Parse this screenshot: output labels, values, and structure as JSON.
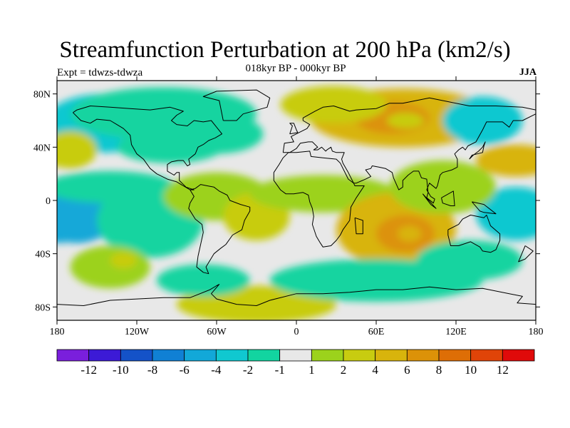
{
  "title": "Streamfunction Perturbation at 200 hPa (km2/s)",
  "subtitle": "018kyr BP - 000kyr BP",
  "left_label": "Expt = tdwzs-tdwza",
  "right_label": "JJA",
  "lat_ticks": [
    {
      "label": "80N",
      "lat": 80
    },
    {
      "label": "40N",
      "lat": 40
    },
    {
      "label": "0",
      "lat": 0
    },
    {
      "label": "40S",
      "lat": -40
    },
    {
      "label": "80S",
      "lat": -80
    }
  ],
  "lon_ticks": [
    {
      "label": "180",
      "lon": -180
    },
    {
      "label": "120W",
      "lon": -120
    },
    {
      "label": "60W",
      "lon": -60
    },
    {
      "label": "0",
      "lon": 0
    },
    {
      "label": "60E",
      "lon": 60
    },
    {
      "label": "120E",
      "lon": 120
    },
    {
      "label": "180",
      "lon": 180
    }
  ],
  "colorbar": {
    "colors": [
      "#7a1fdc",
      "#3c1ad6",
      "#1452c8",
      "#1080d4",
      "#12a8d8",
      "#10c8d0",
      "#12d4a0",
      "#e8e8e8",
      "#9cd21c",
      "#c8cc10",
      "#d8b40c",
      "#dc9208",
      "#de6e06",
      "#e04408",
      "#e00a0a"
    ],
    "labels": [
      "-12",
      "-10",
      "-8",
      "-6",
      "-4",
      "-2",
      "-1",
      "1",
      "2",
      "4",
      "6",
      "8",
      "10",
      "12"
    ]
  },
  "background_color": "#e8e8e8",
  "field_blobs": [
    {
      "lon": 80,
      "lat": 62,
      "rlon": 70,
      "rlat": 22,
      "level": 3.5
    },
    {
      "lon": 72,
      "lat": 62,
      "rlon": 28,
      "rlat": 12,
      "level": 5
    },
    {
      "lon": 82,
      "lat": 60,
      "rlon": 14,
      "rlat": 6,
      "level": 3
    },
    {
      "lon": 28,
      "lat": 72,
      "rlon": 40,
      "rlat": 14,
      "level": 2
    },
    {
      "lon": -145,
      "lat": 58,
      "rlon": 45,
      "rlat": 22,
      "level": -3
    },
    {
      "lon": -100,
      "lat": 65,
      "rlon": 70,
      "rlat": 20,
      "level": -2
    },
    {
      "lon": -60,
      "lat": 50,
      "rlon": 35,
      "rlat": 15,
      "level": -2
    },
    {
      "lon": -95,
      "lat": 40,
      "rlon": 40,
      "rlat": 12,
      "level": -2
    },
    {
      "lon": -170,
      "lat": 38,
      "rlon": 20,
      "rlat": 14,
      "level": 3
    },
    {
      "lon": -178,
      "lat": 33,
      "rlon": 10,
      "rlat": 8,
      "level": 3
    },
    {
      "lon": 140,
      "lat": 60,
      "rlon": 30,
      "rlat": 18,
      "level": -3
    },
    {
      "lon": 165,
      "lat": 30,
      "rlon": 30,
      "rlat": 12,
      "level": 4
    },
    {
      "lon": 172,
      "lat": 30,
      "rlon": 12,
      "rlat": 6,
      "level": 4
    },
    {
      "lon": -165,
      "lat": -10,
      "rlon": 30,
      "rlat": 22,
      "level": -4
    },
    {
      "lon": -178,
      "lat": -20,
      "rlon": 20,
      "rlat": 12,
      "level": -4
    },
    {
      "lon": -110,
      "lat": -15,
      "rlon": 40,
      "rlat": 28,
      "level": -2
    },
    {
      "lon": -140,
      "lat": 10,
      "rlon": 50,
      "rlat": 12,
      "level": -1.5
    },
    {
      "lon": 165,
      "lat": -10,
      "rlon": 30,
      "rlat": 20,
      "level": -3
    },
    {
      "lon": 175,
      "lat": -15,
      "rlon": 15,
      "rlat": 10,
      "level": -3
    },
    {
      "lon": -60,
      "lat": 3,
      "rlon": 40,
      "rlat": 18,
      "level": 1.5
    },
    {
      "lon": -30,
      "lat": -12,
      "rlon": 25,
      "rlat": 18,
      "level": 3
    },
    {
      "lon": -25,
      "lat": -15,
      "rlon": 10,
      "rlat": 7,
      "level": 3
    },
    {
      "lon": 20,
      "lat": 5,
      "rlon": 55,
      "rlat": 14,
      "level": 1.5
    },
    {
      "lon": 75,
      "lat": -22,
      "rlon": 45,
      "rlat": 28,
      "level": 4
    },
    {
      "lon": 82,
      "lat": -25,
      "rlon": 22,
      "rlat": 14,
      "level": 5
    },
    {
      "lon": 85,
      "lat": -25,
      "rlon": 9,
      "rlat": 6,
      "level": 4
    },
    {
      "lon": -140,
      "lat": -50,
      "rlon": 30,
      "rlat": 16,
      "level": 1.5
    },
    {
      "lon": -130,
      "lat": -45,
      "rlon": 10,
      "rlat": 6,
      "level": 2
    },
    {
      "lon": -30,
      "lat": -78,
      "rlon": 60,
      "rlat": 14,
      "level": 2
    },
    {
      "lon": -20,
      "lat": -75,
      "rlon": 30,
      "rlat": 8,
      "level": 2
    },
    {
      "lon": 60,
      "lat": -60,
      "rlon": 80,
      "rlat": 16,
      "level": -1.5
    },
    {
      "lon": 130,
      "lat": -45,
      "rlon": 40,
      "rlat": 15,
      "level": -1.5
    },
    {
      "lon": -70,
      "lat": -60,
      "rlon": 35,
      "rlat": 12,
      "level": -1.5
    },
    {
      "lon": 110,
      "lat": 10,
      "rlon": 40,
      "rlat": 20,
      "level": 1.5
    }
  ],
  "coastlines": [
    [
      [
        -168,
        66
      ],
      [
        -162,
        60
      ],
      [
        -155,
        58
      ],
      [
        -150,
        61
      ],
      [
        -140,
        60
      ],
      [
        -135,
        57
      ],
      [
        -130,
        54
      ],
      [
        -125,
        49
      ],
      [
        -124,
        42
      ],
      [
        -120,
        35
      ],
      [
        -115,
        31
      ],
      [
        -110,
        24
      ],
      [
        -105,
        20
      ],
      [
        -97,
        16
      ],
      [
        -90,
        14
      ],
      [
        -85,
        11
      ],
      [
        -80,
        8
      ],
      [
        -77,
        8
      ],
      [
        -80,
        9
      ],
      [
        -83,
        10
      ],
      [
        -88,
        15
      ],
      [
        -88,
        21
      ],
      [
        -90,
        21
      ],
      [
        -92,
        19
      ],
      [
        -97,
        22
      ],
      [
        -97,
        27
      ],
      [
        -94,
        29
      ],
      [
        -89,
        30
      ],
      [
        -85,
        30
      ],
      [
        -82,
        26
      ],
      [
        -80,
        27
      ],
      [
        -81,
        31
      ],
      [
        -76,
        35
      ],
      [
        -74,
        40
      ],
      [
        -70,
        42
      ],
      [
        -66,
        45
      ],
      [
        -61,
        47
      ],
      [
        -56,
        50
      ],
      [
        -60,
        55
      ],
      [
        -64,
        60
      ],
      [
        -70,
        59
      ],
      [
        -77,
        60
      ],
      [
        -82,
        56
      ],
      [
        -90,
        57
      ],
      [
        -94,
        60
      ],
      [
        -90,
        64
      ],
      [
        -85,
        67
      ],
      [
        -95,
        70
      ],
      [
        -110,
        68
      ],
      [
        -125,
        69
      ],
      [
        -140,
        70
      ],
      [
        -155,
        71
      ],
      [
        -165,
        68
      ],
      [
        -168,
        66
      ]
    ],
    [
      [
        -55,
        60
      ],
      [
        -45,
        60
      ],
      [
        -40,
        65
      ],
      [
        -22,
        70
      ],
      [
        -20,
        77
      ],
      [
        -30,
        83
      ],
      [
        -60,
        82
      ],
      [
        -70,
        78
      ],
      [
        -58,
        75
      ],
      [
        -55,
        60
      ]
    ],
    [
      [
        -80,
        8
      ],
      [
        -77,
        3
      ],
      [
        -80,
        -2
      ],
      [
        -81,
        -6
      ],
      [
        -76,
        -14
      ],
      [
        -71,
        -18
      ],
      [
        -70,
        -24
      ],
      [
        -72,
        -33
      ],
      [
        -74,
        -42
      ],
      [
        -75,
        -50
      ],
      [
        -70,
        -54
      ],
      [
        -66,
        -55
      ],
      [
        -68,
        -50
      ],
      [
        -65,
        -45
      ],
      [
        -62,
        -40
      ],
      [
        -57,
        -36
      ],
      [
        -53,
        -33
      ],
      [
        -48,
        -26
      ],
      [
        -41,
        -22
      ],
      [
        -39,
        -15
      ],
      [
        -35,
        -8
      ],
      [
        -35,
        -5
      ],
      [
        -42,
        -3
      ],
      [
        -50,
        0
      ],
      [
        -52,
        4
      ],
      [
        -58,
        7
      ],
      [
        -62,
        10
      ],
      [
        -67,
        11
      ],
      [
        -72,
        12
      ],
      [
        -76,
        9
      ],
      [
        -80,
        8
      ]
    ],
    [
      [
        -17,
        21
      ],
      [
        -17,
        15
      ],
      [
        -12,
        8
      ],
      [
        -8,
        5
      ],
      [
        -2,
        5
      ],
      [
        5,
        6
      ],
      [
        9,
        4
      ],
      [
        10,
        -1
      ],
      [
        12,
        -6
      ],
      [
        13,
        -12
      ],
      [
        12,
        -18
      ],
      [
        15,
        -27
      ],
      [
        18,
        -32
      ],
      [
        20,
        -35
      ],
      [
        26,
        -34
      ],
      [
        30,
        -30
      ],
      [
        33,
        -26
      ],
      [
        35,
        -22
      ],
      [
        40,
        -15
      ],
      [
        41,
        -5
      ],
      [
        45,
        2
      ],
      [
        51,
        11
      ],
      [
        44,
        11
      ],
      [
        43,
        13
      ],
      [
        39,
        16
      ],
      [
        36,
        22
      ],
      [
        33,
        28
      ],
      [
        30,
        31
      ],
      [
        20,
        32
      ],
      [
        11,
        33
      ],
      [
        10,
        37
      ],
      [
        0,
        36
      ],
      [
        -6,
        36
      ],
      [
        -10,
        32
      ],
      [
        -13,
        27
      ],
      [
        -17,
        21
      ]
    ],
    [
      [
        -10,
        36
      ],
      [
        -9,
        43
      ],
      [
        -2,
        44
      ],
      [
        -4,
        48
      ],
      [
        2,
        51
      ],
      [
        8,
        54
      ],
      [
        10,
        57
      ],
      [
        5,
        60
      ],
      [
        5,
        62
      ],
      [
        14,
        67
      ],
      [
        20,
        70
      ],
      [
        28,
        71
      ],
      [
        40,
        67
      ],
      [
        45,
        68
      ],
      [
        60,
        69
      ],
      [
        70,
        73
      ],
      [
        80,
        73
      ],
      [
        100,
        77
      ],
      [
        115,
        74
      ],
      [
        130,
        71
      ],
      [
        150,
        71
      ],
      [
        170,
        70
      ],
      [
        180,
        68
      ],
      [
        180,
        65
      ],
      [
        170,
        60
      ],
      [
        163,
        60
      ],
      [
        160,
        55
      ],
      [
        155,
        59
      ],
      [
        143,
        59
      ],
      [
        140,
        53
      ],
      [
        135,
        44
      ],
      [
        129,
        41
      ],
      [
        127,
        38
      ],
      [
        125,
        40
      ],
      [
        122,
        38
      ],
      [
        119,
        35
      ],
      [
        121,
        31
      ],
      [
        121,
        25
      ],
      [
        117,
        23
      ],
      [
        110,
        21
      ],
      [
        108,
        19
      ],
      [
        106,
        11
      ],
      [
        105,
        9
      ],
      [
        100,
        13
      ],
      [
        98,
        8
      ],
      [
        101,
        3
      ],
      [
        104,
        1
      ],
      [
        103,
        -2
      ],
      [
        98,
        2
      ],
      [
        99,
        6
      ],
      [
        98,
        16
      ],
      [
        94,
        17
      ],
      [
        92,
        22
      ],
      [
        88,
        22
      ],
      [
        84,
        19
      ],
      [
        80,
        15
      ],
      [
        80,
        10
      ],
      [
        77,
        8
      ],
      [
        73,
        17
      ],
      [
        72,
        21
      ],
      [
        67,
        24
      ],
      [
        62,
        25
      ],
      [
        57,
        26
      ],
      [
        56,
        24
      ],
      [
        52,
        23
      ],
      [
        56,
        18
      ],
      [
        52,
        16
      ],
      [
        45,
        13
      ],
      [
        43,
        13
      ],
      [
        39,
        21
      ],
      [
        35,
        28
      ],
      [
        34,
        31
      ],
      [
        36,
        36
      ],
      [
        30,
        36
      ],
      [
        27,
        37
      ],
      [
        26,
        40
      ],
      [
        23,
        38
      ],
      [
        22,
        37
      ],
      [
        19,
        40
      ],
      [
        16,
        38
      ],
      [
        13,
        38
      ],
      [
        16,
        40
      ],
      [
        12,
        44
      ],
      [
        9,
        44
      ],
      [
        3,
        43
      ],
      [
        0,
        39
      ],
      [
        -5,
        36
      ],
      [
        -10,
        36
      ]
    ],
    [
      [
        -5,
        50
      ],
      [
        -3,
        56
      ],
      [
        -5,
        58
      ],
      [
        -2,
        58
      ],
      [
        0,
        53
      ],
      [
        1,
        51
      ],
      [
        -5,
        50
      ]
    ],
    [
      [
        114,
        -22
      ],
      [
        114,
        -26
      ],
      [
        116,
        -34
      ],
      [
        122,
        -34
      ],
      [
        131,
        -31
      ],
      [
        138,
        -35
      ],
      [
        140,
        -38
      ],
      [
        146,
        -39
      ],
      [
        150,
        -37
      ],
      [
        153,
        -30
      ],
      [
        153,
        -25
      ],
      [
        146,
        -19
      ],
      [
        143,
        -11
      ],
      [
        141,
        -13
      ],
      [
        136,
        -12
      ],
      [
        131,
        -11
      ],
      [
        125,
        -14
      ],
      [
        122,
        -18
      ],
      [
        114,
        -22
      ]
    ],
    [
      [
        -180,
        -78
      ],
      [
        -160,
        -79
      ],
      [
        -140,
        -75
      ],
      [
        -120,
        -74
      ],
      [
        -100,
        -73
      ],
      [
        -80,
        -73
      ],
      [
        -65,
        -67
      ],
      [
        -60,
        -64
      ],
      [
        -58,
        -63
      ],
      [
        -64,
        -70
      ],
      [
        -60,
        -74
      ],
      [
        -45,
        -78
      ],
      [
        -30,
        -79
      ],
      [
        -20,
        -75
      ],
      [
        0,
        -70
      ],
      [
        20,
        -70
      ],
      [
        40,
        -69
      ],
      [
        60,
        -67
      ],
      [
        80,
        -67
      ],
      [
        100,
        -65
      ],
      [
        120,
        -67
      ],
      [
        140,
        -66
      ],
      [
        160,
        -70
      ],
      [
        170,
        -72
      ],
      [
        166,
        -77
      ],
      [
        180,
        -78
      ]
    ],
    [
      [
        44,
        -13
      ],
      [
        50,
        -15
      ],
      [
        50,
        -25
      ],
      [
        45,
        -25
      ],
      [
        44,
        -13
      ]
    ],
    [
      [
        130,
        31
      ],
      [
        132,
        34
      ],
      [
        136,
        35
      ],
      [
        140,
        36
      ],
      [
        141,
        41
      ],
      [
        142,
        44
      ],
      [
        140,
        40
      ],
      [
        137,
        37
      ],
      [
        133,
        34
      ],
      [
        130,
        31
      ]
    ],
    [
      [
        95,
        5
      ],
      [
        105,
        -6
      ],
      [
        101,
        -3
      ],
      [
        95,
        5
      ]
    ],
    [
      [
        109,
        2
      ],
      [
        118,
        7
      ],
      [
        119,
        -4
      ],
      [
        116,
        -4
      ],
      [
        110,
        -2
      ],
      [
        109,
        2
      ]
    ],
    [
      [
        132,
        -1
      ],
      [
        141,
        -3
      ],
      [
        150,
        -10
      ],
      [
        141,
        -9
      ],
      [
        138,
        -8
      ],
      [
        132,
        -1
      ]
    ],
    [
      [
        172,
        -34
      ],
      [
        178,
        -38
      ],
      [
        172,
        -44
      ],
      [
        167,
        -46
      ],
      [
        172,
        -34
      ]
    ]
  ]
}
